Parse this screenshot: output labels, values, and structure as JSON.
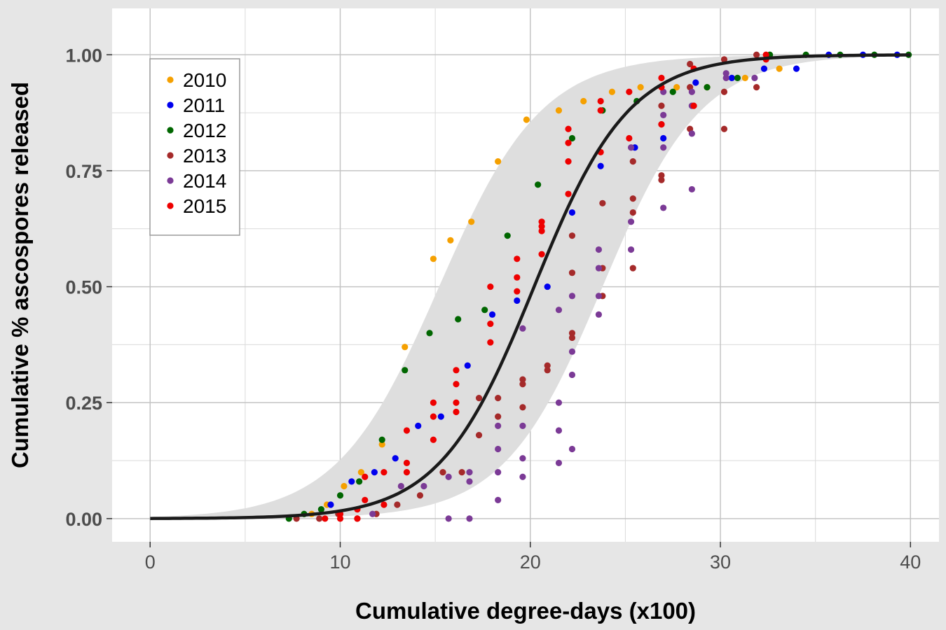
{
  "chart_data": {
    "type": "scatter",
    "title": "",
    "xlabel": "Cumulative degree-days (x100)",
    "ylabel": "Cumulative % ascospores released",
    "xlim": [
      -2,
      41.5
    ],
    "ylim": [
      -0.05,
      1.1
    ],
    "x_ticks": [
      0,
      10,
      20,
      30,
      40
    ],
    "x_tick_labels": [
      "0",
      "10",
      "20",
      "30",
      "40"
    ],
    "y_ticks": [
      0,
      0.25,
      0.5,
      0.75,
      1
    ],
    "y_tick_labels": [
      "0.00",
      "0.25",
      "0.50",
      "0.75",
      "1.00"
    ],
    "grid": true,
    "legend_position": "top-left",
    "fit_curve": {
      "type": "logistic",
      "midpoint": 20.2,
      "scale": 2.5,
      "color": "#1a1a1a"
    },
    "band": {
      "lower_midpoint": 23.8,
      "lower_scale": 2.6,
      "upper_midpoint": 15.2,
      "upper_scale": 2.7,
      "color": "#dedede"
    },
    "series": [
      {
        "name": "2010",
        "color": "#f5a000",
        "points": [
          [
            8.5,
            0.01
          ],
          [
            9.3,
            0.03
          ],
          [
            10.2,
            0.07
          ],
          [
            11.1,
            0.1
          ],
          [
            12.2,
            0.16
          ],
          [
            13.4,
            0.37
          ],
          [
            14.9,
            0.56
          ],
          [
            15.8,
            0.6
          ],
          [
            16.9,
            0.64
          ],
          [
            18.3,
            0.77
          ],
          [
            19.8,
            0.86
          ],
          [
            21.5,
            0.88
          ],
          [
            22.8,
            0.9
          ],
          [
            24.3,
            0.92
          ],
          [
            25.8,
            0.93
          ],
          [
            27.7,
            0.93
          ],
          [
            29.3,
            0.93
          ],
          [
            31.3,
            0.95
          ],
          [
            33.1,
            0.97
          ]
        ]
      },
      {
        "name": "2011",
        "color": "#0000ee",
        "points": [
          [
            9.5,
            0.03
          ],
          [
            10.6,
            0.08
          ],
          [
            11.8,
            0.1
          ],
          [
            12.9,
            0.13
          ],
          [
            14.1,
            0.2
          ],
          [
            15.3,
            0.22
          ],
          [
            16.7,
            0.33
          ],
          [
            18.0,
            0.44
          ],
          [
            19.3,
            0.47
          ],
          [
            20.9,
            0.5
          ],
          [
            22.2,
            0.66
          ],
          [
            23.7,
            0.76
          ],
          [
            25.5,
            0.8
          ],
          [
            27.0,
            0.82
          ],
          [
            28.7,
            0.94
          ],
          [
            30.6,
            0.95
          ],
          [
            32.3,
            0.97
          ],
          [
            34.0,
            0.97
          ],
          [
            35.7,
            1.0
          ],
          [
            37.5,
            1.0
          ],
          [
            39.3,
            1.0
          ]
        ]
      },
      {
        "name": "2012",
        "color": "#006600",
        "points": [
          [
            7.3,
            0.0
          ],
          [
            8.1,
            0.01
          ],
          [
            9.0,
            0.02
          ],
          [
            10.0,
            0.05
          ],
          [
            11.0,
            0.08
          ],
          [
            12.2,
            0.17
          ],
          [
            13.4,
            0.32
          ],
          [
            14.7,
            0.4
          ],
          [
            16.2,
            0.43
          ],
          [
            17.6,
            0.45
          ],
          [
            18.8,
            0.61
          ],
          [
            20.4,
            0.72
          ],
          [
            22.2,
            0.82
          ],
          [
            23.8,
            0.88
          ],
          [
            25.6,
            0.9
          ],
          [
            27.5,
            0.92
          ],
          [
            29.3,
            0.93
          ],
          [
            30.9,
            0.95
          ],
          [
            32.6,
            1.0
          ],
          [
            34.5,
            1.0
          ],
          [
            36.3,
            1.0
          ],
          [
            38.1,
            1.0
          ],
          [
            39.9,
            1.0
          ]
        ]
      },
      {
        "name": "2013",
        "color": "#a52a2a",
        "points": [
          [
            7.7,
            0.0
          ],
          [
            8.9,
            0.0
          ],
          [
            9.9,
            0.01
          ],
          [
            10.9,
            0.0
          ],
          [
            11.9,
            0.01
          ],
          [
            13.0,
            0.03
          ],
          [
            14.2,
            0.05
          ],
          [
            15.4,
            0.1
          ],
          [
            16.4,
            0.1
          ],
          [
            17.3,
            0.18
          ],
          [
            17.3,
            0.26
          ],
          [
            18.3,
            0.22
          ],
          [
            18.3,
            0.26
          ],
          [
            19.6,
            0.24
          ],
          [
            19.6,
            0.29
          ],
          [
            19.6,
            0.3
          ],
          [
            20.9,
            0.32
          ],
          [
            20.9,
            0.33
          ],
          [
            22.2,
            0.39
          ],
          [
            22.2,
            0.4
          ],
          [
            22.2,
            0.53
          ],
          [
            22.2,
            0.61
          ],
          [
            23.8,
            0.48
          ],
          [
            23.8,
            0.54
          ],
          [
            23.8,
            0.68
          ],
          [
            25.4,
            0.54
          ],
          [
            25.4,
            0.66
          ],
          [
            25.4,
            0.69
          ],
          [
            25.4,
            0.77
          ],
          [
            26.9,
            0.73
          ],
          [
            26.9,
            0.74
          ],
          [
            26.9,
            0.85
          ],
          [
            26.9,
            0.89
          ],
          [
            28.4,
            0.84
          ],
          [
            28.4,
            0.93
          ],
          [
            28.4,
            0.98
          ],
          [
            30.2,
            0.84
          ],
          [
            30.2,
            0.92
          ],
          [
            30.2,
            0.99
          ],
          [
            31.9,
            0.93
          ],
          [
            31.9,
            1.0
          ]
        ]
      },
      {
        "name": "2014",
        "color": "#7b3a96",
        "points": [
          [
            11.7,
            0.01
          ],
          [
            13.2,
            0.07
          ],
          [
            14.4,
            0.07
          ],
          [
            15.7,
            0.09
          ],
          [
            15.7,
            0.0
          ],
          [
            16.8,
            0.0
          ],
          [
            16.8,
            0.08
          ],
          [
            16.8,
            0.1
          ],
          [
            18.3,
            0.04
          ],
          [
            18.3,
            0.1
          ],
          [
            18.3,
            0.15
          ],
          [
            18.3,
            0.2
          ],
          [
            19.6,
            0.09
          ],
          [
            19.6,
            0.13
          ],
          [
            19.6,
            0.2
          ],
          [
            19.6,
            0.41
          ],
          [
            21.5,
            0.12
          ],
          [
            21.5,
            0.19
          ],
          [
            21.5,
            0.25
          ],
          [
            21.5,
            0.45
          ],
          [
            22.2,
            0.15
          ],
          [
            22.2,
            0.31
          ],
          [
            22.2,
            0.36
          ],
          [
            22.2,
            0.48
          ],
          [
            23.6,
            0.44
          ],
          [
            23.6,
            0.48
          ],
          [
            23.6,
            0.54
          ],
          [
            23.6,
            0.58
          ],
          [
            25.3,
            0.58
          ],
          [
            25.3,
            0.64
          ],
          [
            25.3,
            0.8
          ],
          [
            27.0,
            0.67
          ],
          [
            27.0,
            0.8
          ],
          [
            27.0,
            0.87
          ],
          [
            27.0,
            0.92
          ],
          [
            28.5,
            0.71
          ],
          [
            28.5,
            0.83
          ],
          [
            28.5,
            0.89
          ],
          [
            28.5,
            0.92
          ],
          [
            30.3,
            0.95
          ],
          [
            30.3,
            0.96
          ],
          [
            31.8,
            0.95
          ]
        ]
      },
      {
        "name": "2015",
        "color": "#ee0000",
        "points": [
          [
            9.2,
            0.0
          ],
          [
            10.0,
            0.0
          ],
          [
            10.0,
            0.01
          ],
          [
            10.9,
            0.0
          ],
          [
            10.9,
            0.02
          ],
          [
            11.3,
            0.04
          ],
          [
            11.3,
            0.09
          ],
          [
            12.3,
            0.03
          ],
          [
            12.3,
            0.1
          ],
          [
            13.5,
            0.1
          ],
          [
            13.5,
            0.12
          ],
          [
            13.5,
            0.19
          ],
          [
            14.9,
            0.17
          ],
          [
            14.9,
            0.22
          ],
          [
            14.9,
            0.25
          ],
          [
            16.1,
            0.23
          ],
          [
            16.1,
            0.25
          ],
          [
            16.1,
            0.29
          ],
          [
            16.1,
            0.32
          ],
          [
            17.9,
            0.38
          ],
          [
            17.9,
            0.42
          ],
          [
            17.9,
            0.5
          ],
          [
            19.3,
            0.49
          ],
          [
            19.3,
            0.52
          ],
          [
            19.3,
            0.56
          ],
          [
            20.6,
            0.57
          ],
          [
            20.6,
            0.62
          ],
          [
            20.6,
            0.63
          ],
          [
            20.6,
            0.64
          ],
          [
            22.0,
            0.7
          ],
          [
            22.0,
            0.77
          ],
          [
            22.0,
            0.81
          ],
          [
            22.0,
            0.84
          ],
          [
            23.7,
            0.79
          ],
          [
            23.7,
            0.88
          ],
          [
            23.7,
            0.9
          ],
          [
            25.2,
            0.82
          ],
          [
            25.2,
            0.92
          ],
          [
            26.9,
            0.85
          ],
          [
            26.9,
            0.93
          ],
          [
            26.9,
            0.95
          ],
          [
            28.6,
            0.89
          ],
          [
            28.6,
            0.97
          ],
          [
            32.4,
            0.99
          ],
          [
            32.4,
            1.0
          ]
        ]
      }
    ]
  }
}
